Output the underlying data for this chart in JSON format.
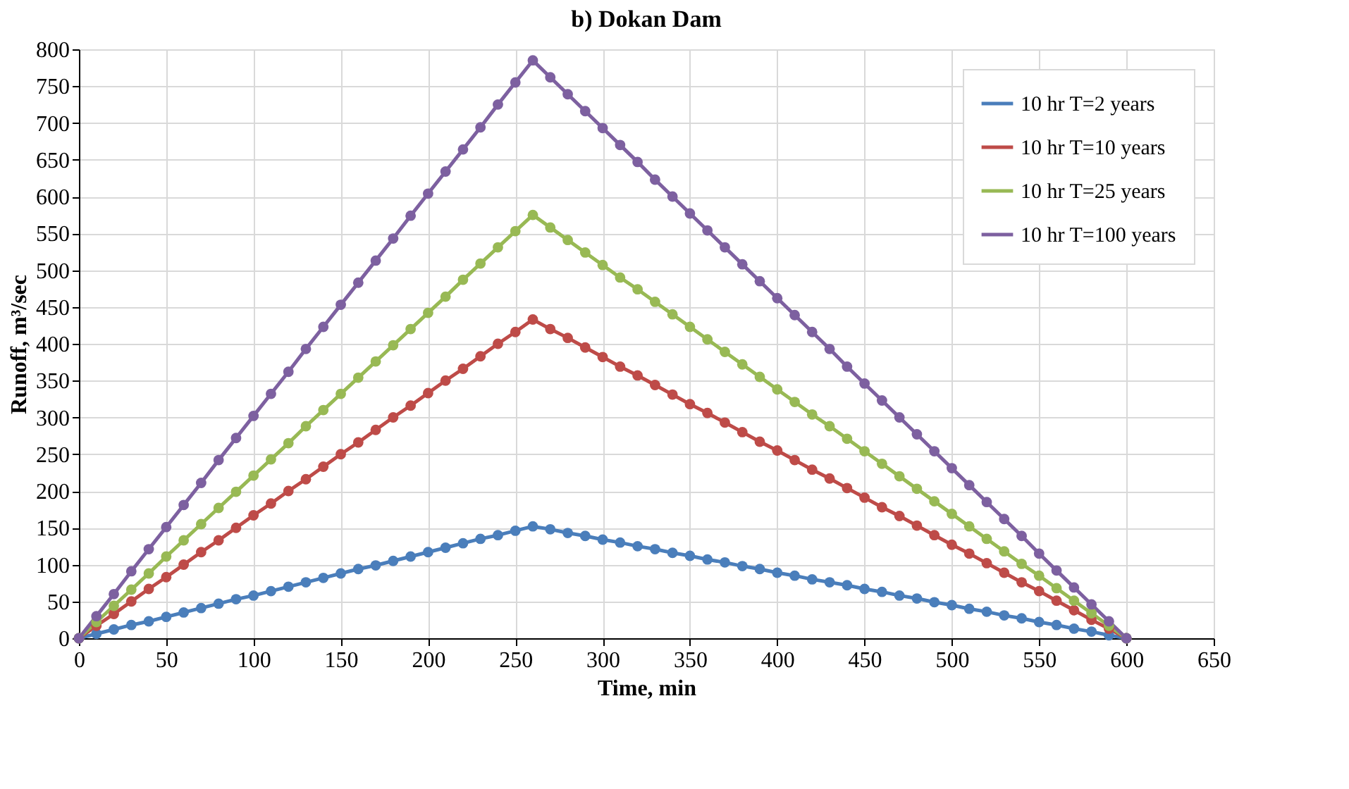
{
  "chart_data": {
    "type": "line",
    "title": "b) Dokan Dam",
    "xlabel": "Time, min",
    "ylabel": "Runoff, m³/sec",
    "x": [
      0,
      10,
      20,
      30,
      40,
      50,
      60,
      70,
      80,
      90,
      100,
      110,
      120,
      130,
      140,
      150,
      160,
      170,
      180,
      190,
      200,
      210,
      220,
      230,
      240,
      250,
      260,
      270,
      280,
      290,
      300,
      310,
      320,
      330,
      340,
      350,
      360,
      370,
      380,
      390,
      400,
      410,
      420,
      430,
      440,
      450,
      460,
      470,
      480,
      490,
      500,
      510,
      520,
      530,
      540,
      550,
      560,
      570,
      580,
      590,
      600
    ],
    "series": [
      {
        "name": "10 hr T=2 years",
        "color": "#4a7ebb",
        "values": [
          0,
          6,
          12,
          18,
          23,
          29,
          35,
          41,
          47,
          53,
          58,
          64,
          70,
          76,
          82,
          88,
          94,
          99,
          105,
          111,
          117,
          123,
          129,
          135,
          140,
          146,
          152,
          148,
          143,
          139,
          134,
          130,
          125,
          121,
          116,
          112,
          107,
          103,
          98,
          94,
          89,
          85,
          80,
          76,
          72,
          67,
          63,
          58,
          54,
          49,
          45,
          40,
          36,
          31,
          27,
          22,
          18,
          13,
          9,
          4,
          0
        ]
      },
      {
        "name": "10 hr T=10 years",
        "color": "#be4b48",
        "values": [
          0,
          17,
          33,
          50,
          67,
          83,
          100,
          117,
          133,
          150,
          167,
          183,
          200,
          216,
          233,
          250,
          266,
          283,
          300,
          316,
          333,
          350,
          366,
          383,
          400,
          416,
          433,
          420,
          408,
          395,
          382,
          369,
          357,
          344,
          331,
          318,
          306,
          293,
          280,
          267,
          255,
          242,
          229,
          217,
          204,
          191,
          178,
          166,
          153,
          140,
          127,
          115,
          102,
          89,
          76,
          64,
          51,
          38,
          25,
          13,
          0
        ]
      },
      {
        "name": "10 hr T=25 years",
        "color": "#98b954",
        "values": [
          0,
          22,
          44,
          66,
          88,
          111,
          133,
          155,
          177,
          199,
          221,
          243,
          265,
          288,
          310,
          332,
          354,
          376,
          398,
          420,
          442,
          464,
          487,
          509,
          531,
          553,
          575,
          558,
          541,
          524,
          507,
          490,
          474,
          457,
          440,
          423,
          406,
          389,
          372,
          355,
          338,
          321,
          304,
          288,
          271,
          254,
          237,
          220,
          203,
          186,
          169,
          152,
          135,
          118,
          101,
          85,
          68,
          51,
          34,
          17,
          0
        ]
      },
      {
        "name": "10 hr T=100 years",
        "color": "#7d60a0",
        "values": [
          0,
          30,
          60,
          91,
          121,
          151,
          181,
          211,
          242,
          272,
          302,
          332,
          362,
          393,
          423,
          453,
          483,
          513,
          543,
          574,
          604,
          634,
          664,
          694,
          725,
          755,
          785,
          762,
          739,
          716,
          693,
          670,
          647,
          623,
          600,
          577,
          554,
          531,
          508,
          485,
          462,
          439,
          416,
          393,
          369,
          346,
          323,
          300,
          277,
          254,
          231,
          208,
          185,
          162,
          139,
          115,
          92,
          69,
          46,
          23,
          0
        ]
      }
    ],
    "xlim": [
      0,
      650
    ],
    "xticks": [
      0,
      50,
      100,
      150,
      200,
      250,
      300,
      350,
      400,
      450,
      500,
      550,
      600,
      650
    ],
    "ylim": [
      0,
      800
    ],
    "yticks": [
      0,
      50,
      100,
      150,
      200,
      250,
      300,
      350,
      400,
      450,
      500,
      550,
      600,
      650,
      700,
      750,
      800
    ],
    "grid": true,
    "legend": "top right",
    "marker": "circle",
    "line_style": "solid"
  }
}
